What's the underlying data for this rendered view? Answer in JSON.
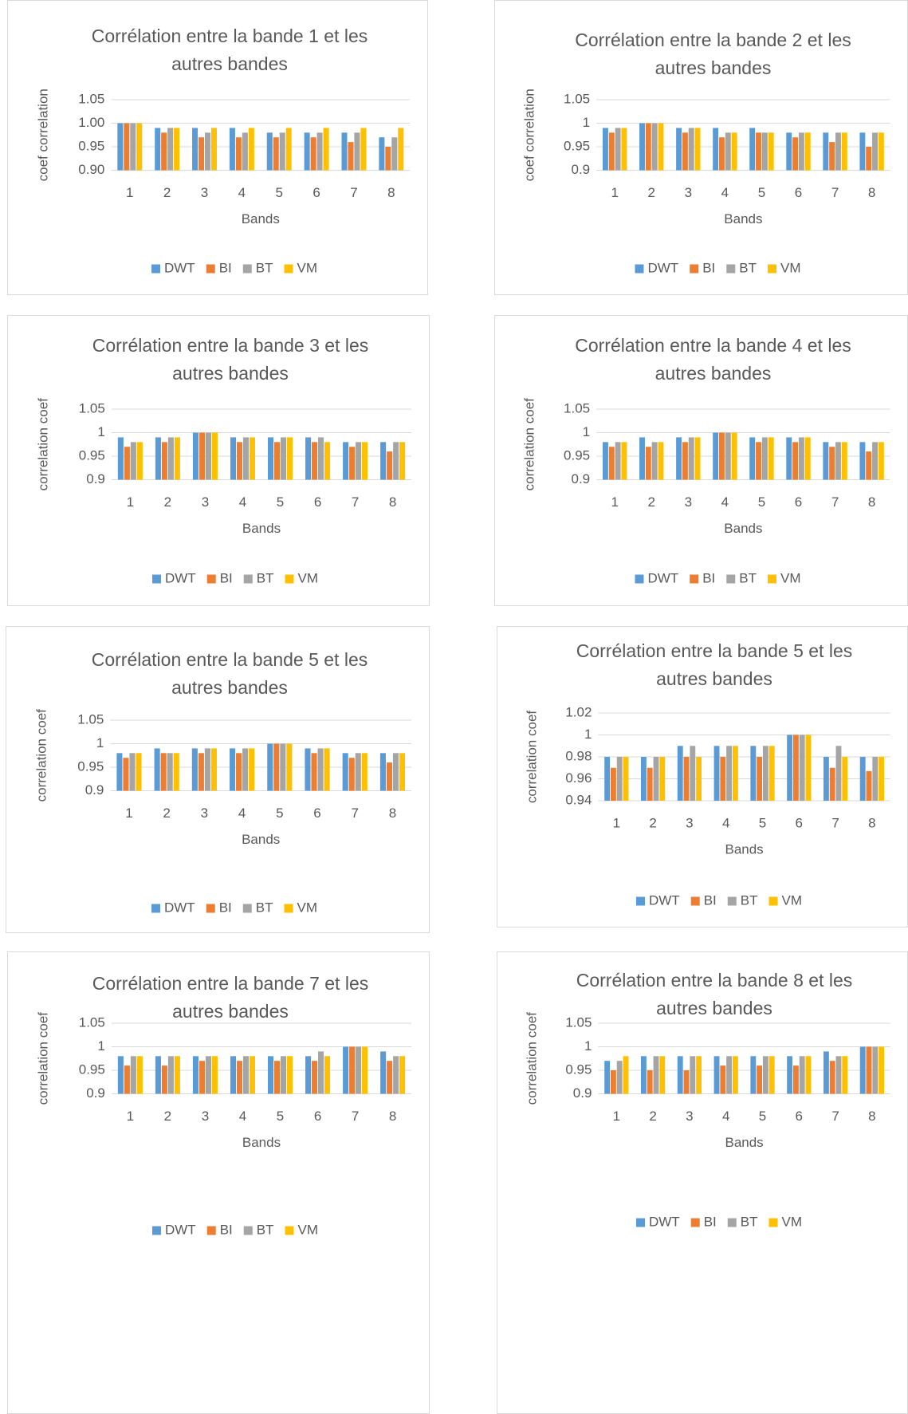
{
  "chart_data": [
    {
      "type": "bar",
      "title": "Corrélation entre la bande 1 et les autres bandes",
      "xlabel": "Bands",
      "ylabel": "coef correlation",
      "categories": [
        "1",
        "2",
        "3",
        "4",
        "5",
        "6",
        "7",
        "8"
      ],
      "ylim": [
        0.9,
        1.05
      ],
      "yticks": [
        {
          "value": 0.9,
          "label": "0.90"
        },
        0.95,
        {
          "value": 1,
          "label": "1.00"
        },
        1.05
      ],
      "grid": true,
      "legend": "bottom",
      "series": [
        {
          "name": "DWT",
          "color": "#5b9bd5",
          "values": [
            1,
            0.99,
            0.99,
            0.99,
            0.98,
            0.98,
            0.98,
            0.97
          ]
        },
        {
          "name": "BI",
          "color": "#ed7d31",
          "values": [
            1,
            0.98,
            0.97,
            0.97,
            0.97,
            0.97,
            0.96,
            0.95
          ]
        },
        {
          "name": "BT",
          "color": "#a5a5a5",
          "values": [
            1,
            0.99,
            0.98,
            0.98,
            0.98,
            0.98,
            0.98,
            0.97
          ]
        },
        {
          "name": "VM",
          "color": "#ffc000",
          "values": [
            1,
            0.99,
            0.99,
            0.99,
            0.99,
            0.99,
            0.99,
            0.99
          ]
        }
      ]
    },
    {
      "type": "bar",
      "title": "Corrélation entre la bande 2 et les autres bandes",
      "xlabel": "Bands",
      "ylabel": "coef correlation",
      "categories": [
        "1",
        "2",
        "3",
        "4",
        "5",
        "6",
        "7",
        "8"
      ],
      "ylim": [
        0.9,
        1.05
      ],
      "yticks": [
        0.9,
        0.95,
        1,
        1.05
      ],
      "grid": true,
      "legend": "bottom",
      "series": [
        {
          "name": "DWT",
          "color": "#5b9bd5",
          "values": [
            0.99,
            1,
            0.99,
            0.99,
            0.99,
            0.98,
            0.98,
            0.98
          ]
        },
        {
          "name": "BI",
          "color": "#ed7d31",
          "values": [
            0.98,
            1,
            0.98,
            0.97,
            0.98,
            0.97,
            0.96,
            0.95
          ]
        },
        {
          "name": "BT",
          "color": "#a5a5a5",
          "values": [
            0.99,
            1,
            0.99,
            0.98,
            0.98,
            0.98,
            0.98,
            0.98
          ]
        },
        {
          "name": "VM",
          "color": "#ffc000",
          "values": [
            0.99,
            1,
            0.99,
            0.98,
            0.98,
            0.98,
            0.98,
            0.98
          ]
        }
      ]
    },
    {
      "type": "bar",
      "title": "Corrélation entre la bande 3 et les autres bandes",
      "xlabel": "Bands",
      "ylabel": "correlation coef",
      "categories": [
        "1",
        "2",
        "3",
        "4",
        "5",
        "6",
        "7",
        "8"
      ],
      "ylim": [
        0.9,
        1.05
      ],
      "yticks": [
        0.9,
        0.95,
        1,
        1.05
      ],
      "grid": true,
      "legend": "bottom",
      "series": [
        {
          "name": "DWT",
          "color": "#5b9bd5",
          "values": [
            0.99,
            0.99,
            1,
            0.99,
            0.99,
            0.99,
            0.98,
            0.98
          ]
        },
        {
          "name": "BI",
          "color": "#ed7d31",
          "values": [
            0.97,
            0.98,
            1,
            0.98,
            0.98,
            0.98,
            0.97,
            0.96
          ]
        },
        {
          "name": "BT",
          "color": "#a5a5a5",
          "values": [
            0.98,
            0.99,
            1,
            0.99,
            0.99,
            0.99,
            0.98,
            0.98
          ]
        },
        {
          "name": "VM",
          "color": "#ffc000",
          "values": [
            0.98,
            0.99,
            1,
            0.99,
            0.99,
            0.98,
            0.98,
            0.98
          ]
        }
      ]
    },
    {
      "type": "bar",
      "title": "Corrélation entre la bande 4 et les autres bandes",
      "xlabel": "Bands",
      "ylabel": "correlation coef",
      "categories": [
        "1",
        "2",
        "3",
        "4",
        "5",
        "6",
        "7",
        "8"
      ],
      "ylim": [
        0.9,
        1.05
      ],
      "yticks": [
        0.9,
        0.95,
        1,
        1.05
      ],
      "grid": true,
      "legend": "bottom",
      "series": [
        {
          "name": "DWT",
          "color": "#5b9bd5",
          "values": [
            0.98,
            0.99,
            0.99,
            1,
            0.99,
            0.99,
            0.98,
            0.98
          ]
        },
        {
          "name": "BI",
          "color": "#ed7d31",
          "values": [
            0.97,
            0.97,
            0.98,
            1,
            0.98,
            0.98,
            0.97,
            0.96
          ]
        },
        {
          "name": "BT",
          "color": "#a5a5a5",
          "values": [
            0.98,
            0.98,
            0.99,
            1,
            0.99,
            0.99,
            0.98,
            0.98
          ]
        },
        {
          "name": "VM",
          "color": "#ffc000",
          "values": [
            0.98,
            0.98,
            0.99,
            1,
            0.99,
            0.99,
            0.98,
            0.98
          ]
        }
      ]
    },
    {
      "type": "bar",
      "title": "Corrélation entre la bande 5 et les autres bandes",
      "xlabel": "Bands",
      "ylabel": "correlation coef",
      "categories": [
        "1",
        "2",
        "3",
        "4",
        "5",
        "6",
        "7",
        "8"
      ],
      "ylim": [
        0.9,
        1.05
      ],
      "yticks": [
        0.9,
        0.95,
        1,
        1.05
      ],
      "grid": true,
      "legend": "bottom",
      "series": [
        {
          "name": "DWT",
          "color": "#5b9bd5",
          "values": [
            0.98,
            0.99,
            0.99,
            0.99,
            1,
            0.99,
            0.98,
            0.98
          ]
        },
        {
          "name": "BI",
          "color": "#ed7d31",
          "values": [
            0.97,
            0.98,
            0.98,
            0.98,
            1,
            0.98,
            0.97,
            0.96
          ]
        },
        {
          "name": "BT",
          "color": "#a5a5a5",
          "values": [
            0.98,
            0.98,
            0.99,
            0.99,
            1,
            0.99,
            0.98,
            0.98
          ]
        },
        {
          "name": "VM",
          "color": "#ffc000",
          "values": [
            0.98,
            0.98,
            0.99,
            0.99,
            1,
            0.99,
            0.98,
            0.98
          ]
        }
      ]
    },
    {
      "type": "bar",
      "title": "Corrélation entre la bande 5 et les autres bandes",
      "xlabel": "Bands",
      "ylabel": "correlation coef",
      "categories": [
        "1",
        "2",
        "3",
        "4",
        "5",
        "6",
        "7",
        "8"
      ],
      "ylim": [
        0.94,
        1.02
      ],
      "yticks": [
        0.94,
        0.96,
        0.98,
        1,
        1.02
      ],
      "grid": true,
      "legend": "bottom",
      "series": [
        {
          "name": "DWT",
          "color": "#5b9bd5",
          "values": [
            0.98,
            0.98,
            0.99,
            0.99,
            0.99,
            1,
            0.98,
            0.98
          ]
        },
        {
          "name": "BI",
          "color": "#ed7d31",
          "values": [
            0.97,
            0.97,
            0.98,
            0.98,
            0.98,
            1,
            0.97,
            0.967
          ]
        },
        {
          "name": "BT",
          "color": "#a5a5a5",
          "values": [
            0.98,
            0.98,
            0.99,
            0.99,
            0.99,
            1,
            0.99,
            0.98
          ]
        },
        {
          "name": "VM",
          "color": "#ffc000",
          "values": [
            0.98,
            0.98,
            0.98,
            0.99,
            0.99,
            1,
            0.98,
            0.98
          ]
        }
      ]
    },
    {
      "type": "bar",
      "title": "Corrélation entre la bande 7 et les autres bandes",
      "xlabel": "Bands",
      "ylabel": "correlation coef",
      "categories": [
        "1",
        "2",
        "3",
        "4",
        "5",
        "6",
        "7",
        "8"
      ],
      "ylim": [
        0.9,
        1.05
      ],
      "yticks": [
        0.9,
        0.95,
        1,
        1.05
      ],
      "grid": true,
      "legend": "bottom",
      "series": [
        {
          "name": "DWT",
          "color": "#5b9bd5",
          "values": [
            0.98,
            0.98,
            0.98,
            0.98,
            0.98,
            0.98,
            1,
            0.99
          ]
        },
        {
          "name": "BI",
          "color": "#ed7d31",
          "values": [
            0.96,
            0.96,
            0.97,
            0.97,
            0.97,
            0.97,
            1,
            0.97
          ]
        },
        {
          "name": "BT",
          "color": "#a5a5a5",
          "values": [
            0.98,
            0.98,
            0.98,
            0.98,
            0.98,
            0.99,
            1,
            0.98
          ]
        },
        {
          "name": "VM",
          "color": "#ffc000",
          "values": [
            0.98,
            0.98,
            0.98,
            0.98,
            0.98,
            0.98,
            1,
            0.98
          ]
        }
      ]
    },
    {
      "type": "bar",
      "title": "Corrélation entre la bande 8 et les autres bandes",
      "xlabel": "Bands",
      "ylabel": "correlation coef",
      "categories": [
        "1",
        "2",
        "3",
        "4",
        "5",
        "6",
        "7",
        "8"
      ],
      "ylim": [
        0.9,
        1.05
      ],
      "yticks": [
        0.9,
        0.95,
        1,
        1.05
      ],
      "grid": true,
      "legend": "bottom",
      "series": [
        {
          "name": "DWT",
          "color": "#5b9bd5",
          "values": [
            0.97,
            0.98,
            0.98,
            0.98,
            0.98,
            0.98,
            0.99,
            1
          ]
        },
        {
          "name": "BI",
          "color": "#ed7d31",
          "values": [
            0.95,
            0.95,
            0.95,
            0.96,
            0.96,
            0.96,
            0.97,
            1
          ]
        },
        {
          "name": "BT",
          "color": "#a5a5a5",
          "values": [
            0.97,
            0.98,
            0.98,
            0.98,
            0.98,
            0.98,
            0.98,
            1
          ]
        },
        {
          "name": "VM",
          "color": "#ffc000",
          "values": [
            0.98,
            0.98,
            0.98,
            0.98,
            0.98,
            0.98,
            0.98,
            1
          ]
        }
      ]
    }
  ]
}
